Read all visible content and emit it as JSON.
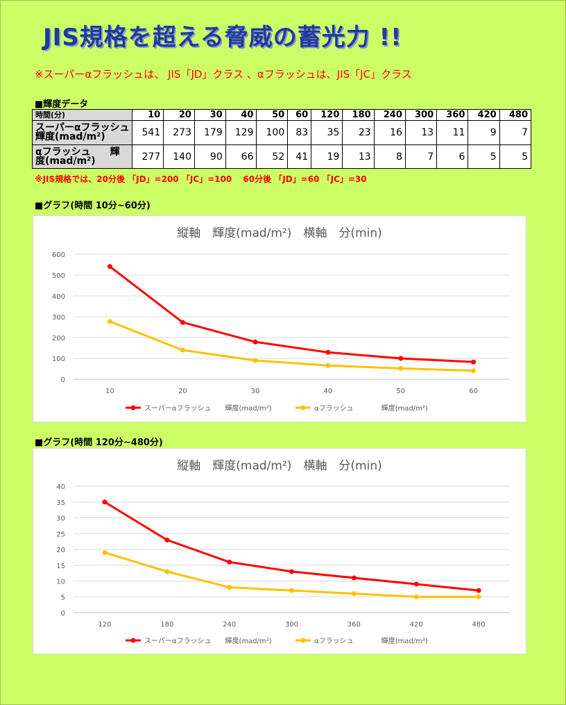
{
  "title": "JIS規格を超える脅威の蓄光力 !!",
  "note_top": "※スーパーαフラッシュは、 JIS「JD」クラス  、αフラッシュは、JIS「JC」クラス",
  "section_data": "■輝度データ",
  "table": {
    "header_label": "時間(分)",
    "times": [
      "10",
      "20",
      "30",
      "40",
      "50",
      "60",
      "120",
      "180",
      "240",
      "300",
      "360",
      "420",
      "480"
    ],
    "rows": [
      {
        "label_line1": "スーパーαフラッシュ",
        "label_line2": "輝度(mad/m²)",
        "values": [
          "541",
          "273",
          "179",
          "129",
          "100",
          "83",
          "35",
          "23",
          "16",
          "13",
          "11",
          "9",
          "7"
        ]
      },
      {
        "label_line1": "αフラッシュ　　輝",
        "label_line2": "度(mad/m²)",
        "values": [
          "277",
          "140",
          "90",
          "66",
          "52",
          "41",
          "19",
          "13",
          "8",
          "7",
          "6",
          "5",
          "5"
        ]
      }
    ]
  },
  "note_jis": "※JIS規格では、20分後 「JD」=200 「JC」=100　 60分後 「JD」=60 「JC」=30",
  "section_graph1": "■グラフ(時間 10分~60分)",
  "section_graph2": "■グラフ(時間 120分~480分)",
  "colors": {
    "super": "#ff0000",
    "alpha": "#ffc000"
  },
  "chart_data": [
    {
      "type": "line",
      "title": "縦軸　輝度(mad/m²)　横軸　分(min)",
      "x": [
        10,
        20,
        30,
        40,
        50,
        60
      ],
      "ylim": [
        0,
        600
      ],
      "yticks": [
        0,
        100,
        200,
        300,
        400,
        500,
        600
      ],
      "grid": true,
      "legend": "bottom",
      "series": [
        {
          "name": "スーパーαフラッシュ　　輝度(mad/m²)",
          "values": [
            541,
            273,
            179,
            129,
            100,
            83
          ]
        },
        {
          "name": "αフラッシュ　　　　輝度(mad/m²)",
          "values": [
            277,
            140,
            90,
            66,
            52,
            41
          ]
        }
      ]
    },
    {
      "type": "line",
      "title": "縦軸　輝度(mad/m²)　横軸　分(min)",
      "x": [
        120,
        180,
        240,
        300,
        360,
        420,
        480
      ],
      "ylim": [
        0,
        40
      ],
      "yticks": [
        0,
        5,
        10,
        15,
        20,
        25,
        30,
        35,
        40
      ],
      "grid": true,
      "legend": "bottom",
      "series": [
        {
          "name": "スーパーαフラッシュ　　輝度(mad/m²)",
          "values": [
            35,
            23,
            16,
            13,
            11,
            9,
            7
          ]
        },
        {
          "name": "αフラッシュ　　　　輝度(mad/m²)",
          "values": [
            19,
            13,
            8,
            7,
            6,
            5,
            5
          ]
        }
      ]
    }
  ]
}
